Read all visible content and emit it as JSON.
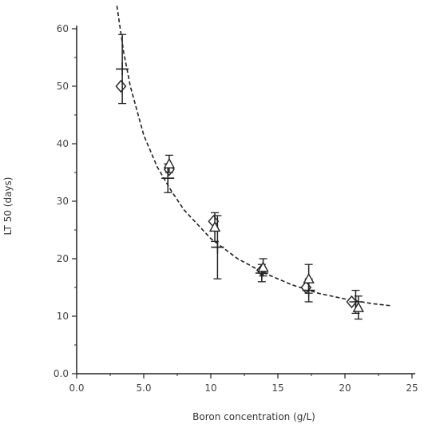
{
  "chart_data": {
    "type": "scatter",
    "xlabel": "Boron concentration (g/L)",
    "ylabel": "LT 50 (days)",
    "xlim": [
      0,
      25
    ],
    "ylim": [
      0,
      60
    ],
    "xticks": [
      0,
      5,
      10,
      15,
      20,
      25
    ],
    "yticks": [
      0,
      10,
      20,
      30,
      40,
      50,
      60
    ],
    "xtick_labels": [
      "0.0",
      "5.0",
      "10",
      "15",
      "20",
      "25"
    ],
    "ytick_labels": [
      "0.0",
      "10",
      "20",
      "30",
      "40",
      "50",
      "60"
    ],
    "grid": false,
    "legend": "none",
    "series": [
      {
        "marker": "diamond",
        "points": [
          {
            "x": 3.3,
            "y": 50.0
          },
          {
            "x": 6.9,
            "y": 35.5
          },
          {
            "x": 10.2,
            "y": 26.5
          },
          {
            "x": 13.8,
            "y": 18.0
          },
          {
            "x": 17.1,
            "y": 15.0
          },
          {
            "x": 20.5,
            "y": 12.5
          }
        ]
      },
      {
        "marker": "cross",
        "points": [
          {
            "x": 3.4,
            "y": 53.0,
            "err": 6.0
          },
          {
            "x": 6.8,
            "y": 34.0,
            "err": 2.5
          },
          {
            "x": 10.5,
            "y": 22.0,
            "err": 5.5
          },
          {
            "x": 13.8,
            "y": 17.5,
            "err": 1.5
          },
          {
            "x": 17.3,
            "y": 14.5,
            "err": 2.0
          },
          {
            "x": 20.8,
            "y": 12.5,
            "err": 2.0
          }
        ]
      },
      {
        "marker": "triangle",
        "points": [
          {
            "x": 6.9,
            "y": 36.5,
            "err": 1.5
          },
          {
            "x": 10.3,
            "y": 25.5,
            "err": 2.5
          },
          {
            "x": 13.9,
            "y": 18.5,
            "err": 1.5
          },
          {
            "x": 17.3,
            "y": 16.5,
            "err": 2.5
          },
          {
            "x": 21.0,
            "y": 11.5,
            "err": 2.0
          }
        ]
      }
    ],
    "fit_curve": {
      "style": "dashed",
      "x": [
        3.0,
        3.5,
        4.0,
        5.0,
        6.0,
        7.0,
        8.0,
        10.0,
        12.0,
        14.0,
        16.0,
        18.0,
        20.0,
        22.0,
        23.5
      ],
      "y": [
        64.0,
        56.0,
        50.0,
        41.5,
        36.0,
        32.0,
        28.5,
        23.5,
        20.0,
        17.5,
        15.5,
        14.0,
        13.0,
        12.2,
        11.8
      ]
    }
  }
}
